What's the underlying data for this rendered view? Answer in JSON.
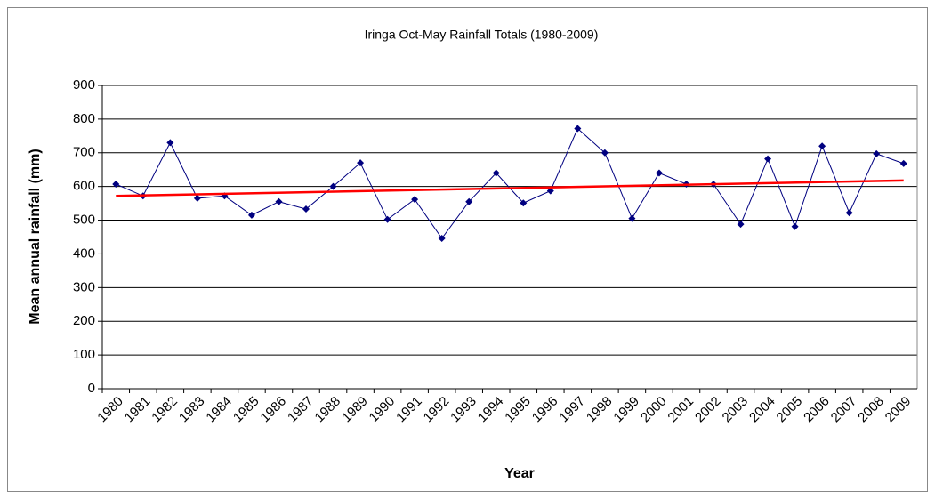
{
  "chart_data": {
    "type": "line",
    "title": "Iringa Oct-May Rainfall Totals (1980-2009)",
    "x_label": "Year",
    "y_label": "Mean annual rainfall (mm)",
    "categories": [
      "1980",
      "1981",
      "1982",
      "1983",
      "1984",
      "1985",
      "1986",
      "1987",
      "1988",
      "1989",
      "1990",
      "1991",
      "1992",
      "1993",
      "1994",
      "1995",
      "1996",
      "1997",
      "1998",
      "1999",
      "2000",
      "2001",
      "2002",
      "2003",
      "2004",
      "2005",
      "2006",
      "2007",
      "2008",
      "2009"
    ],
    "series": [
      {
        "color": "#000080",
        "values": [
          607,
          572,
          730,
          565,
          572,
          515,
          555,
          533,
          600,
          670,
          502,
          562,
          446,
          555,
          640,
          551,
          587,
          772,
          700,
          505,
          640,
          607,
          607,
          488,
          682,
          481,
          720,
          522,
          697,
          668
        ]
      }
    ],
    "trendline": {
      "color": "#ff0000",
      "values": [
        572,
        618
      ]
    },
    "ylim": [
      0,
      900
    ],
    "yticks": [
      0,
      100,
      200,
      300,
      400,
      500,
      600,
      700,
      800,
      900
    ],
    "grid": true
  }
}
